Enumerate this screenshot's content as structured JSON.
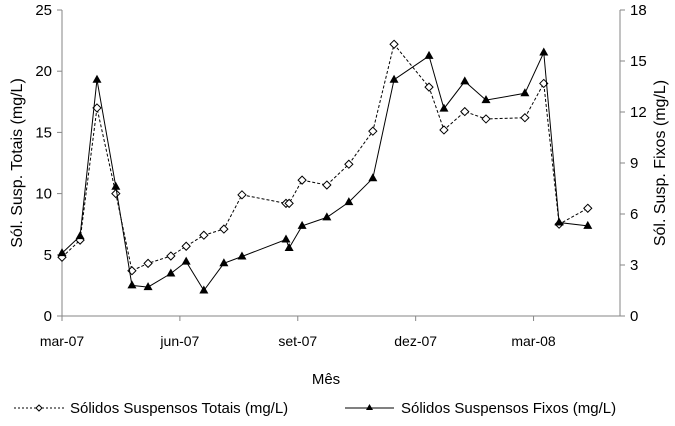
{
  "chart_data": {
    "type": "line",
    "xlabel": "Mês",
    "ylabel_left": "Sól. Susp. Totais  (mg/L)",
    "ylabel_right": "Sól. Susp. Fixos (mg/L)",
    "x_unit": "months since mar-07",
    "xlim": [
      0,
      14.2
    ],
    "x_ticks": [
      {
        "value": 0,
        "label": "mar-07"
      },
      {
        "value": 3,
        "label": "jun-07"
      },
      {
        "value": 6,
        "label": "set-07"
      },
      {
        "value": 9,
        "label": "dez-07"
      },
      {
        "value": 12,
        "label": "mar-08"
      }
    ],
    "ylim_left": [
      0,
      25
    ],
    "y_ticks_left": [
      "0",
      "5",
      "10",
      "15",
      "20",
      "25"
    ],
    "ylim_right": [
      0,
      18
    ],
    "y_ticks_right": [
      "0",
      "3",
      "6",
      "9",
      "12",
      "15",
      "18"
    ],
    "grid": false,
    "legend_position": "bottom",
    "x": [
      0,
      0.46,
      0.89,
      1.37,
      1.78,
      2.19,
      2.77,
      3.16,
      3.61,
      4.12,
      4.58,
      5.7,
      5.78,
      6.11,
      6.74,
      7.3,
      7.91,
      8.45,
      9.34,
      9.72,
      10.25,
      10.79,
      11.78,
      12.26,
      12.65,
      13.38
    ],
    "series": [
      {
        "name": "Sólidos Suspensos Totais (mg/L)",
        "axis": "left",
        "marker": "diamond",
        "dashed": true,
        "values": [
          4.8,
          6.2,
          17.0,
          10.0,
          3.7,
          4.3,
          4.9,
          5.7,
          6.6,
          7.1,
          9.9,
          9.2,
          9.2,
          11.1,
          10.7,
          12.4,
          15.1,
          22.2,
          18.7,
          15.2,
          16.7,
          16.1,
          16.2,
          19.0,
          7.5,
          8.8
        ]
      },
      {
        "name": "Sólidos Suspensos Fixos (mg/L)",
        "axis": "right",
        "marker": "triangle",
        "dashed": false,
        "values": [
          3.7,
          4.7,
          13.9,
          7.6,
          1.8,
          1.7,
          2.5,
          3.2,
          1.5,
          3.1,
          3.5,
          4.5,
          4.0,
          5.3,
          5.8,
          6.7,
          8.1,
          13.9,
          15.3,
          12.2,
          13.8,
          12.7,
          13.1,
          15.5,
          5.5,
          5.3
        ]
      }
    ]
  }
}
